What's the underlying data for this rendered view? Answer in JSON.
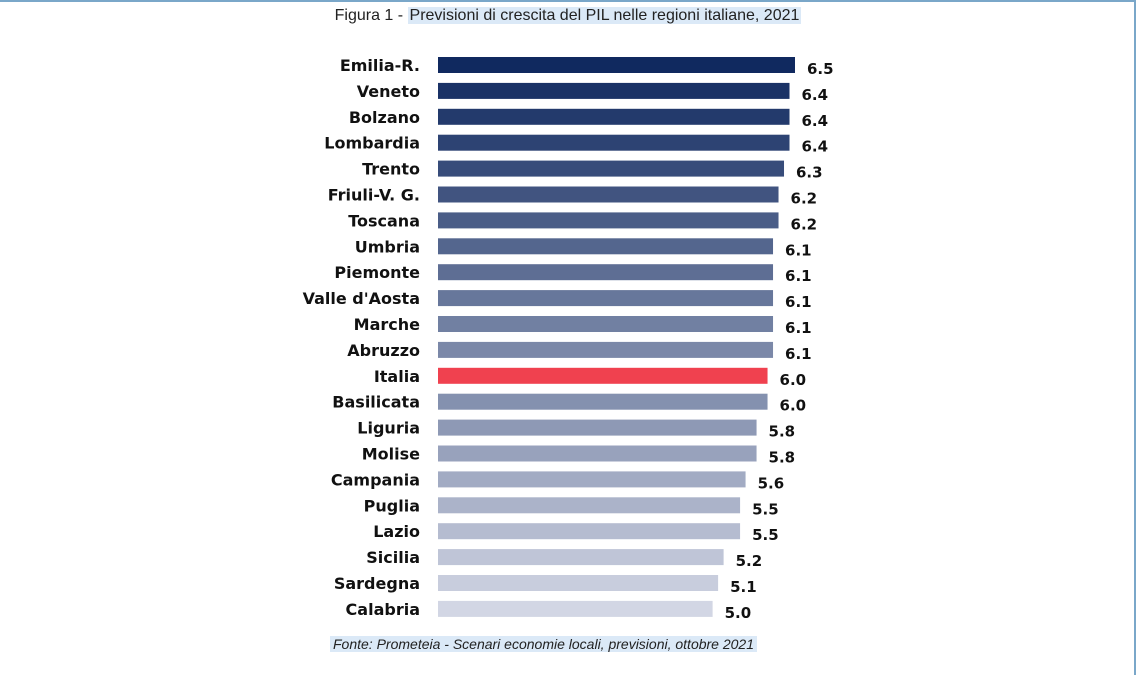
{
  "caption": {
    "prefix": "Figura 1 - ",
    "title": "Previsioni di crescita del PIL nelle regioni italiane, 2021"
  },
  "source": "Fonte: Prometeia - Scenari economie locali, previsioni, ottobre 2021",
  "colors": {
    "highlight": "#f0414f",
    "bar_dark": "#10295f",
    "bar_light": "#d2d6e4"
  },
  "chart_data": {
    "type": "bar",
    "orientation": "horizontal",
    "title": "Previsioni di crescita del PIL nelle regioni italiane, 2021",
    "xlabel": "",
    "ylabel": "",
    "grid": false,
    "highlight": "Italia",
    "categories": [
      "Emilia-R.",
      "Veneto",
      "Bolzano",
      "Lombardia",
      "Trento",
      "Friuli-V. G.",
      "Toscana",
      "Umbria",
      "Piemonte",
      "Valle d'Aosta",
      "Marche",
      "Abruzzo",
      "Italia",
      "Basilicata",
      "Liguria",
      "Molise",
      "Campania",
      "Puglia",
      "Lazio",
      "Sicilia",
      "Sardegna",
      "Calabria"
    ],
    "values": [
      6.5,
      6.4,
      6.4,
      6.4,
      6.3,
      6.2,
      6.2,
      6.1,
      6.1,
      6.1,
      6.1,
      6.1,
      6.0,
      6.0,
      5.8,
      5.8,
      5.6,
      5.5,
      5.5,
      5.2,
      5.1,
      5.0
    ],
    "value_labels": [
      "6.5",
      "6.4",
      "6.4",
      "6.4",
      "6.3",
      "6.2",
      "6.2",
      "6.1",
      "6.1",
      "6.1",
      "6.1",
      "6.1",
      "6.0",
      "6.0",
      "5.8",
      "5.8",
      "5.6",
      "5.5",
      "5.5",
      "5.2",
      "5.1",
      "5.0"
    ]
  }
}
